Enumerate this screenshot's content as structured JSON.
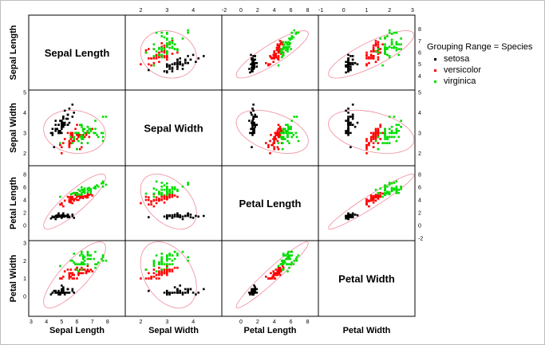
{
  "chart_data": {
    "type": "scatter",
    "title": "",
    "variables": [
      "Sepal Length",
      "Sepal Width",
      "Petal Length",
      "Petal Width"
    ],
    "bottom_axis_labels": [
      "Sepal Length",
      "Sepal Width",
      "Petal Length",
      "Petal Width"
    ],
    "left_axis_labels": [
      "Sepal Length",
      "Sepal Width",
      "Petal Length",
      "Petal Width"
    ],
    "ranges": {
      "Sepal Length": [
        3,
        9
      ],
      "Sepal Width": [
        1.5,
        5
      ],
      "Petal Length": [
        -2,
        9
      ],
      "Petal Width": [
        -1,
        3
      ]
    },
    "ticks": {
      "Sepal Length": [
        "3",
        "4",
        "5",
        "6",
        "7",
        "8"
      ],
      "Sepal Width": [
        "2",
        "3",
        "4"
      ],
      "Petal Length": [
        "0",
        "2",
        "4",
        "6",
        "8"
      ],
      "Petal Width": [
        "-1",
        "0",
        "1",
        "2",
        "3"
      ],
      "Sepal Length_right": [
        "4",
        "5",
        "6",
        "7",
        "8"
      ],
      "Sepal Width_left": [
        "2",
        "3",
        "4",
        "5"
      ],
      "Petal Length_left": [
        "0",
        "2",
        "4",
        "6",
        "8"
      ],
      "Petal Length_right": [
        "-2",
        "0",
        "2",
        "4",
        "6",
        "8"
      ],
      "Petal Width_left": [
        "0",
        "1",
        "2",
        "3"
      ],
      "Petal Width_top": [
        "-1",
        "0",
        "1",
        "2",
        "3"
      ],
      "Petal Length_top": [
        "-2",
        "0",
        "2",
        "4",
        "6",
        "8"
      ],
      "Sepal Width_top": [
        "2",
        "3",
        "4"
      ]
    },
    "legend": {
      "title": "Grouping Range = Species",
      "placement": "right",
      "entries": [
        "setosa",
        "versicolor",
        "virginica"
      ]
    },
    "series": [
      {
        "name": "setosa",
        "color": "#000000",
        "points": [
          [
            5.1,
            3.5,
            1.4,
            0.2
          ],
          [
            4.9,
            3.0,
            1.4,
            0.2
          ],
          [
            4.7,
            3.2,
            1.3,
            0.2
          ],
          [
            4.6,
            3.1,
            1.5,
            0.2
          ],
          [
            5.0,
            3.6,
            1.4,
            0.2
          ],
          [
            5.4,
            3.9,
            1.7,
            0.4
          ],
          [
            4.6,
            3.4,
            1.4,
            0.3
          ],
          [
            5.0,
            3.4,
            1.5,
            0.2
          ],
          [
            4.4,
            2.9,
            1.4,
            0.2
          ],
          [
            4.9,
            3.1,
            1.5,
            0.1
          ],
          [
            5.4,
            3.7,
            1.5,
            0.2
          ],
          [
            4.8,
            3.4,
            1.6,
            0.2
          ],
          [
            4.8,
            3.0,
            1.4,
            0.1
          ],
          [
            4.3,
            3.0,
            1.1,
            0.1
          ],
          [
            5.8,
            4.0,
            1.2,
            0.2
          ],
          [
            5.7,
            4.4,
            1.5,
            0.4
          ],
          [
            5.4,
            3.9,
            1.3,
            0.4
          ],
          [
            5.1,
            3.5,
            1.4,
            0.3
          ],
          [
            5.7,
            3.8,
            1.7,
            0.3
          ],
          [
            5.1,
            3.8,
            1.5,
            0.3
          ],
          [
            5.4,
            3.4,
            1.7,
            0.2
          ],
          [
            5.1,
            3.7,
            1.5,
            0.4
          ],
          [
            4.6,
            3.6,
            1.0,
            0.2
          ],
          [
            5.1,
            3.3,
            1.7,
            0.5
          ],
          [
            4.8,
            3.4,
            1.9,
            0.2
          ],
          [
            5.0,
            3.0,
            1.6,
            0.2
          ],
          [
            5.0,
            3.4,
            1.6,
            0.4
          ],
          [
            5.2,
            3.5,
            1.5,
            0.2
          ],
          [
            5.2,
            3.4,
            1.4,
            0.2
          ],
          [
            4.7,
            3.2,
            1.6,
            0.2
          ],
          [
            4.8,
            3.1,
            1.6,
            0.2
          ],
          [
            5.4,
            3.4,
            1.5,
            0.4
          ],
          [
            5.2,
            4.1,
            1.5,
            0.1
          ],
          [
            5.5,
            4.2,
            1.4,
            0.2
          ],
          [
            4.9,
            3.1,
            1.5,
            0.2
          ],
          [
            5.0,
            3.2,
            1.2,
            0.2
          ],
          [
            5.5,
            3.5,
            1.3,
            0.2
          ],
          [
            4.9,
            3.6,
            1.4,
            0.1
          ],
          [
            4.4,
            3.0,
            1.3,
            0.2
          ],
          [
            5.1,
            3.4,
            1.5,
            0.2
          ],
          [
            5.0,
            3.5,
            1.3,
            0.3
          ],
          [
            4.5,
            2.3,
            1.3,
            0.3
          ],
          [
            4.4,
            3.2,
            1.3,
            0.2
          ],
          [
            5.0,
            3.5,
            1.6,
            0.6
          ],
          [
            5.1,
            3.8,
            1.9,
            0.4
          ],
          [
            4.8,
            3.0,
            1.4,
            0.3
          ],
          [
            5.1,
            3.8,
            1.6,
            0.2
          ],
          [
            4.6,
            3.2,
            1.4,
            0.2
          ],
          [
            5.3,
            3.7,
            1.5,
            0.2
          ],
          [
            5.0,
            3.3,
            1.4,
            0.2
          ]
        ]
      },
      {
        "name": "versicolor",
        "color": "#ff0000",
        "points": [
          [
            7.0,
            3.2,
            4.7,
            1.4
          ],
          [
            6.4,
            3.2,
            4.5,
            1.5
          ],
          [
            6.9,
            3.1,
            4.9,
            1.5
          ],
          [
            5.5,
            2.3,
            4.0,
            1.3
          ],
          [
            6.5,
            2.8,
            4.6,
            1.5
          ],
          [
            5.7,
            2.8,
            4.5,
            1.3
          ],
          [
            6.3,
            3.3,
            4.7,
            1.6
          ],
          [
            4.9,
            2.4,
            3.3,
            1.0
          ],
          [
            6.6,
            2.9,
            4.6,
            1.3
          ],
          [
            5.2,
            2.7,
            3.9,
            1.4
          ],
          [
            5.0,
            2.0,
            3.5,
            1.0
          ],
          [
            5.9,
            3.0,
            4.2,
            1.5
          ],
          [
            6.0,
            2.2,
            4.0,
            1.0
          ],
          [
            6.1,
            2.9,
            4.7,
            1.4
          ],
          [
            5.6,
            2.9,
            3.6,
            1.3
          ],
          [
            6.7,
            3.1,
            4.4,
            1.4
          ],
          [
            5.6,
            3.0,
            4.5,
            1.5
          ],
          [
            5.8,
            2.7,
            4.1,
            1.0
          ],
          [
            6.2,
            2.2,
            4.5,
            1.5
          ],
          [
            5.6,
            2.5,
            3.9,
            1.1
          ],
          [
            5.9,
            3.2,
            4.8,
            1.8
          ],
          [
            6.1,
            2.8,
            4.0,
            1.3
          ],
          [
            6.3,
            2.5,
            4.9,
            1.5
          ],
          [
            6.1,
            2.8,
            4.7,
            1.2
          ],
          [
            6.4,
            2.9,
            4.3,
            1.3
          ],
          [
            6.6,
            3.0,
            4.4,
            1.4
          ],
          [
            6.8,
            2.8,
            4.8,
            1.4
          ],
          [
            6.7,
            3.0,
            5.0,
            1.7
          ],
          [
            6.0,
            2.9,
            4.5,
            1.5
          ],
          [
            5.7,
            2.6,
            3.5,
            1.0
          ],
          [
            5.5,
            2.4,
            3.8,
            1.1
          ],
          [
            5.5,
            2.4,
            3.7,
            1.0
          ],
          [
            5.8,
            2.7,
            3.9,
            1.2
          ],
          [
            6.0,
            2.7,
            5.1,
            1.6
          ],
          [
            5.4,
            3.0,
            4.5,
            1.5
          ],
          [
            6.0,
            3.4,
            4.5,
            1.6
          ],
          [
            6.7,
            3.1,
            4.7,
            1.5
          ],
          [
            6.3,
            2.3,
            4.4,
            1.3
          ],
          [
            5.6,
            3.0,
            4.1,
            1.3
          ],
          [
            5.5,
            2.5,
            4.0,
            1.3
          ],
          [
            5.5,
            2.6,
            4.4,
            1.2
          ],
          [
            6.1,
            3.0,
            4.6,
            1.4
          ],
          [
            5.8,
            2.6,
            4.0,
            1.2
          ],
          [
            5.0,
            2.3,
            3.3,
            1.0
          ],
          [
            5.6,
            2.7,
            4.2,
            1.3
          ],
          [
            5.7,
            3.0,
            4.2,
            1.2
          ],
          [
            5.7,
            2.9,
            4.2,
            1.3
          ],
          [
            6.2,
            2.9,
            4.3,
            1.3
          ],
          [
            5.1,
            2.5,
            3.0,
            1.1
          ],
          [
            5.7,
            2.8,
            4.1,
            1.3
          ]
        ]
      },
      {
        "name": "virginica",
        "color": "#00dd00",
        "points": [
          [
            6.3,
            3.3,
            6.0,
            2.5
          ],
          [
            5.8,
            2.7,
            5.1,
            1.9
          ],
          [
            7.1,
            3.0,
            5.9,
            2.1
          ],
          [
            6.3,
            2.9,
            5.6,
            1.8
          ],
          [
            6.5,
            3.0,
            5.8,
            2.2
          ],
          [
            7.6,
            3.0,
            6.6,
            2.1
          ],
          [
            4.9,
            2.5,
            4.5,
            1.7
          ],
          [
            7.3,
            2.9,
            6.3,
            1.8
          ],
          [
            6.7,
            2.5,
            5.8,
            1.8
          ],
          [
            7.2,
            3.6,
            6.1,
            2.5
          ],
          [
            6.5,
            3.2,
            5.1,
            2.0
          ],
          [
            6.4,
            2.7,
            5.3,
            1.9
          ],
          [
            6.8,
            3.0,
            5.5,
            2.1
          ],
          [
            5.7,
            2.5,
            5.0,
            2.0
          ],
          [
            5.8,
            2.8,
            5.1,
            2.4
          ],
          [
            6.4,
            3.2,
            5.3,
            2.3
          ],
          [
            6.5,
            3.0,
            5.5,
            1.8
          ],
          [
            7.7,
            3.8,
            6.7,
            2.2
          ],
          [
            7.7,
            2.6,
            6.9,
            2.3
          ],
          [
            6.0,
            2.2,
            5.0,
            1.5
          ],
          [
            6.9,
            3.2,
            5.7,
            2.3
          ],
          [
            5.6,
            2.8,
            4.9,
            2.0
          ],
          [
            7.7,
            2.8,
            6.7,
            2.0
          ],
          [
            6.3,
            2.7,
            4.9,
            1.8
          ],
          [
            6.7,
            3.3,
            5.7,
            2.1
          ],
          [
            7.2,
            3.2,
            6.0,
            1.8
          ],
          [
            6.2,
            2.8,
            4.8,
            1.8
          ],
          [
            6.1,
            3.0,
            4.9,
            1.8
          ],
          [
            6.4,
            2.8,
            5.6,
            2.1
          ],
          [
            7.2,
            3.0,
            5.8,
            1.6
          ],
          [
            7.4,
            2.8,
            6.1,
            1.9
          ],
          [
            7.9,
            3.8,
            6.4,
            2.0
          ],
          [
            6.4,
            2.8,
            5.6,
            2.2
          ],
          [
            6.3,
            2.8,
            5.1,
            1.5
          ],
          [
            6.1,
            2.6,
            5.6,
            1.4
          ],
          [
            7.7,
            3.0,
            6.1,
            2.3
          ],
          [
            6.3,
            3.4,
            5.6,
            2.4
          ],
          [
            6.4,
            3.1,
            5.5,
            1.8
          ],
          [
            6.0,
            3.0,
            4.8,
            1.8
          ],
          [
            6.9,
            3.1,
            5.4,
            2.1
          ],
          [
            6.7,
            3.1,
            5.6,
            2.4
          ],
          [
            6.9,
            3.1,
            5.1,
            2.3
          ],
          [
            5.8,
            2.7,
            5.1,
            1.9
          ],
          [
            6.8,
            3.2,
            5.9,
            2.3
          ],
          [
            6.7,
            3.3,
            5.7,
            2.5
          ],
          [
            6.7,
            3.0,
            5.2,
            2.3
          ],
          [
            6.3,
            2.5,
            5.0,
            1.9
          ],
          [
            6.5,
            3.0,
            5.2,
            2.0
          ],
          [
            6.2,
            3.4,
            5.4,
            2.3
          ],
          [
            5.9,
            3.0,
            5.1,
            1.8
          ]
        ]
      }
    ]
  }
}
